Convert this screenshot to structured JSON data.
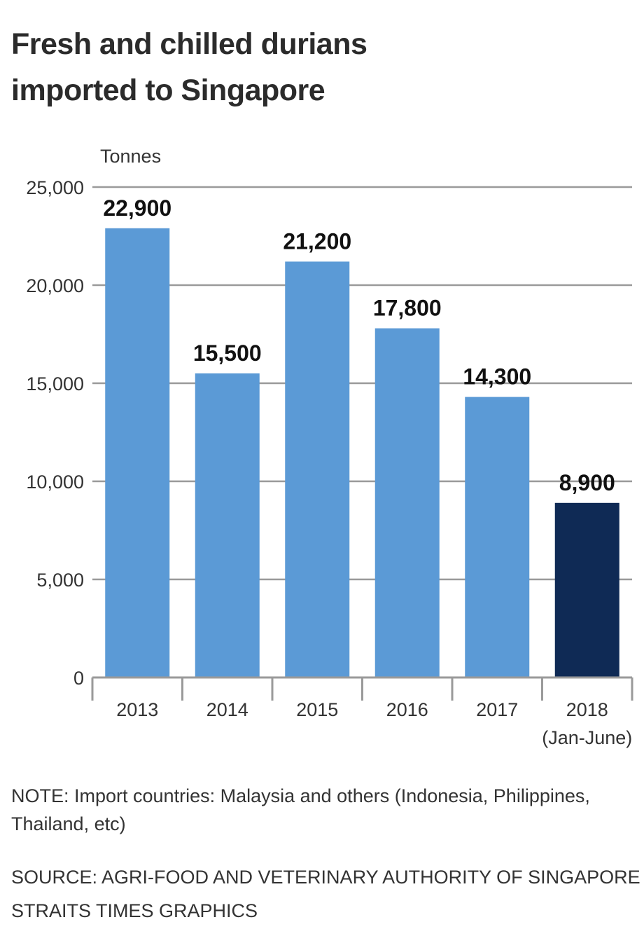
{
  "chart_data": {
    "type": "bar",
    "title": "Fresh and chilled durians imported to Singapore",
    "ylabel": "Tonnes",
    "xlabel": "",
    "categories": [
      "2013",
      "2014",
      "2015",
      "2016",
      "2017",
      "2018"
    ],
    "category_sublabels": [
      "",
      "",
      "",
      "",
      "",
      "(Jan-June)"
    ],
    "values": [
      22900,
      15500,
      21200,
      17800,
      14300,
      8900
    ],
    "value_labels": [
      "22,900",
      "15,500",
      "21,200",
      "17,800",
      "14,300",
      "8,900"
    ],
    "colors": [
      "#5b9ad6",
      "#5b9ad6",
      "#5b9ad6",
      "#5b9ad6",
      "#5b9ad6",
      "#0f2a55"
    ],
    "ylim": [
      0,
      25000
    ],
    "yticks": [
      0,
      5000,
      10000,
      15000,
      20000,
      25000
    ],
    "ytick_labels": [
      "0",
      "5,000",
      "10,000",
      "15,000",
      "20,000",
      "25,000"
    ],
    "grid": true,
    "legend": "none"
  },
  "note": "NOTE: Import countries: Malaysia and others (Indonesia, Philippines, Thailand, etc)",
  "source": "SOURCE: AGRI-FOOD AND VETERINARY AUTHORITY OF SINGAPORE",
  "credit": "STRAITS TIMES GRAPHICS"
}
